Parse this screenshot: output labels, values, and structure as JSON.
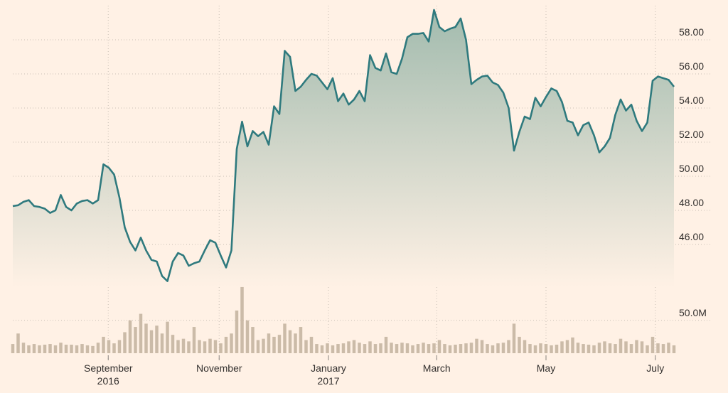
{
  "chart_data": {
    "type": "line",
    "xlim": [
      0,
      124
    ],
    "xticks": [
      {
        "value": 17.9,
        "label": "September",
        "year": "2016"
      },
      {
        "value": 38.7,
        "label": "November"
      },
      {
        "value": 59.2,
        "label": "January",
        "year": "2017"
      },
      {
        "value": 79.5,
        "label": "March"
      },
      {
        "value": 100,
        "label": "May"
      },
      {
        "value": 120.5,
        "label": "July"
      }
    ],
    "ylim": [
      43.5,
      60
    ],
    "yticks": [
      {
        "value": 46,
        "label": "46.00"
      },
      {
        "value": 48,
        "label": "48.00"
      },
      {
        "value": 50,
        "label": "50.00"
      },
      {
        "value": 52,
        "label": "52.00"
      },
      {
        "value": 54,
        "label": "54.00"
      },
      {
        "value": 56,
        "label": "56.00"
      },
      {
        "value": 58,
        "label": "58.00"
      }
    ],
    "y2lim": [
      0,
      105
    ],
    "y2ticks": [
      {
        "value": 50,
        "label": "50.0M"
      }
    ],
    "grid": true,
    "series": [
      {
        "color": "#2f7a7e",
        "values": [
          48.25,
          48.3,
          48.5,
          48.6,
          48.25,
          48.2,
          48.1,
          47.85,
          48.0,
          48.9,
          48.2,
          48.0,
          48.4,
          48.55,
          48.6,
          48.4,
          48.6,
          50.7,
          50.5,
          50.1,
          48.75,
          47.0,
          46.15,
          45.65,
          46.4,
          45.65,
          45.1,
          45.0,
          44.15,
          43.85,
          45.0,
          45.5,
          45.35,
          44.75,
          44.9,
          45.0,
          45.65,
          46.25,
          46.1,
          45.35,
          44.65,
          45.65,
          51.6,
          53.2,
          51.75,
          52.65,
          52.35,
          52.6,
          51.85,
          54.1,
          53.65,
          57.35,
          57.0,
          55.0,
          55.25,
          55.65,
          56.0,
          55.9,
          55.5,
          55.1,
          55.75,
          54.4,
          54.85,
          54.2,
          54.5,
          55.0,
          54.4,
          57.1,
          56.35,
          56.2,
          57.2,
          56.1,
          56.0,
          56.9,
          58.15,
          58.35,
          58.35,
          58.4,
          57.9,
          59.75,
          58.75,
          58.5,
          58.65,
          58.75,
          59.25,
          58.0,
          55.4,
          55.65,
          55.85,
          55.9,
          55.5,
          55.35,
          54.9,
          54.0,
          51.5,
          52.6,
          53.5,
          53.35,
          54.6,
          54.1,
          54.65,
          55.15,
          55.0,
          54.35,
          53.25,
          53.15,
          52.4,
          53.0,
          53.15,
          52.4,
          51.4,
          51.75,
          52.25,
          53.6,
          54.5,
          53.85,
          54.2,
          53.25,
          52.65,
          53.15,
          55.6,
          55.85,
          55.75,
          55.65,
          55.25
        ]
      },
      {
        "type": "bar",
        "axis": "y2",
        "color": "#cbbba8",
        "values": [
          14,
          30,
          16,
          12,
          14,
          12,
          13,
          14,
          12,
          16,
          13,
          13,
          12,
          14,
          12,
          11,
          16,
          25,
          20,
          15,
          20,
          32,
          50,
          40,
          60,
          45,
          35,
          42,
          30,
          48,
          28,
          20,
          22,
          18,
          40,
          20,
          18,
          22,
          20,
          15,
          25,
          30,
          65,
          103,
          50,
          40,
          20,
          22,
          30,
          25,
          28,
          45,
          35,
          30,
          40,
          20,
          25,
          14,
          12,
          15,
          12,
          14,
          15,
          18,
          20,
          16,
          14,
          18,
          14,
          15,
          25,
          16,
          14,
          16,
          15,
          12,
          14,
          16,
          14,
          15,
          20,
          14,
          12,
          13,
          14,
          15,
          16,
          22,
          20,
          14,
          12,
          15,
          16,
          20,
          45,
          25,
          20,
          14,
          12,
          15,
          14,
          12,
          13,
          18,
          20,
          24,
          16,
          14,
          13,
          12,
          16,
          18,
          15,
          14,
          22,
          18,
          14,
          20,
          18,
          12,
          25,
          15,
          14,
          16,
          12
        ]
      }
    ]
  }
}
